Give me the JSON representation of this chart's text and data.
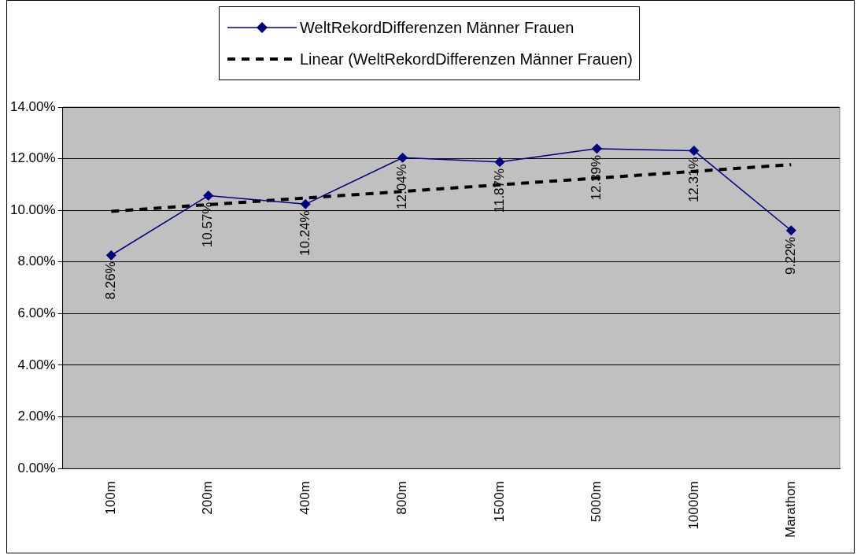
{
  "chart_data": {
    "type": "line",
    "categories": [
      "100m",
      "200m",
      "400m",
      "800m",
      "1500m",
      "5000m",
      "10000m",
      "Marathon"
    ],
    "series": [
      {
        "name": "WeltRekordDifferenzen Männer Frauen",
        "type": "line",
        "color": "#000080",
        "marker": "diamond",
        "line_style": "solid",
        "values": [
          8.26,
          10.57,
          10.24,
          12.04,
          11.87,
          12.39,
          12.31,
          9.22
        ],
        "value_labels": [
          "8.26%",
          "10.57%",
          "10.24%",
          "12.04%",
          "11.87%",
          "12.39%",
          "12.31%",
          "9.22%"
        ]
      },
      {
        "name": "Linear (WeltRekordDifferenzen Männer Frauen)",
        "type": "line",
        "color": "#000000",
        "marker": "none",
        "line_style": "dashed",
        "values": [
          9.96,
          10.22,
          10.48,
          10.73,
          10.99,
          11.25,
          11.51,
          11.77
        ]
      }
    ],
    "ylim": [
      0,
      14
    ],
    "yticks": [
      {
        "value": 0,
        "label": "0.00%"
      },
      {
        "value": 2,
        "label": "2.00%"
      },
      {
        "value": 4,
        "label": "4.00%"
      },
      {
        "value": 6,
        "label": "6.00%"
      },
      {
        "value": 8,
        "label": "8.00%"
      },
      {
        "value": 10,
        "label": "10.00%"
      },
      {
        "value": 12,
        "label": "12.00%"
      },
      {
        "value": 14,
        "label": "14.00%"
      }
    ],
    "grid": "y",
    "legend": "top"
  }
}
